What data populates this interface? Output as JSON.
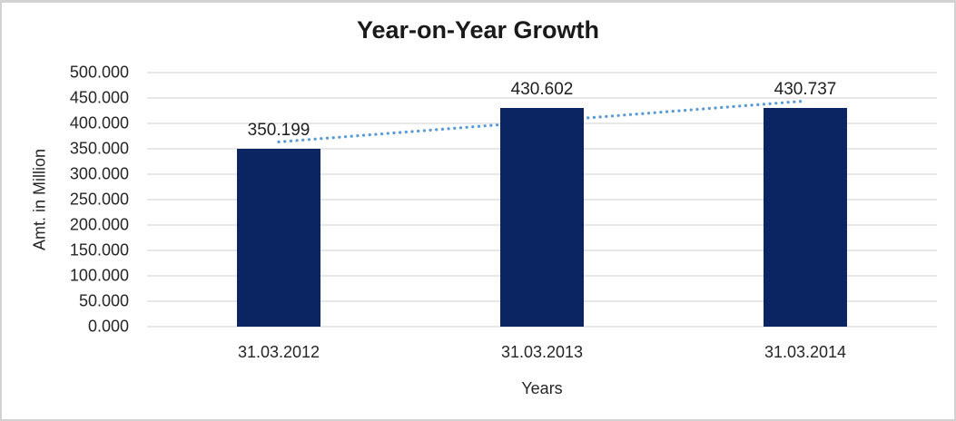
{
  "frame": {
    "background": "#FFFFFF",
    "border_color": "#D2D2D2"
  },
  "chart_data": {
    "type": "bar",
    "title": "Year-on-Year Growth",
    "xlabel": "Years",
    "ylabel": "Amt. in Million",
    "categories": [
      "31.03.2012",
      "31.03.2013",
      "31.03.2014"
    ],
    "values": [
      350.199,
      430.602,
      430.737
    ],
    "data_labels": [
      "350.199",
      "430.602",
      "430.737"
    ],
    "ylim": [
      0,
      500
    ],
    "ytick_step": 50,
    "ytick_labels": [
      "0.000",
      "50.000",
      "100.000",
      "150.000",
      "200.000",
      "250.000",
      "300.000",
      "350.000",
      "400.000",
      "450.000",
      "500.000"
    ],
    "grid": true,
    "legend": "none",
    "bar_color": "#0B2562",
    "gridline_color": "#D9D9D9",
    "text_color": "#262626",
    "trendline": {
      "type": "linear",
      "style": "dotted",
      "color": "#5B9BD5"
    }
  }
}
